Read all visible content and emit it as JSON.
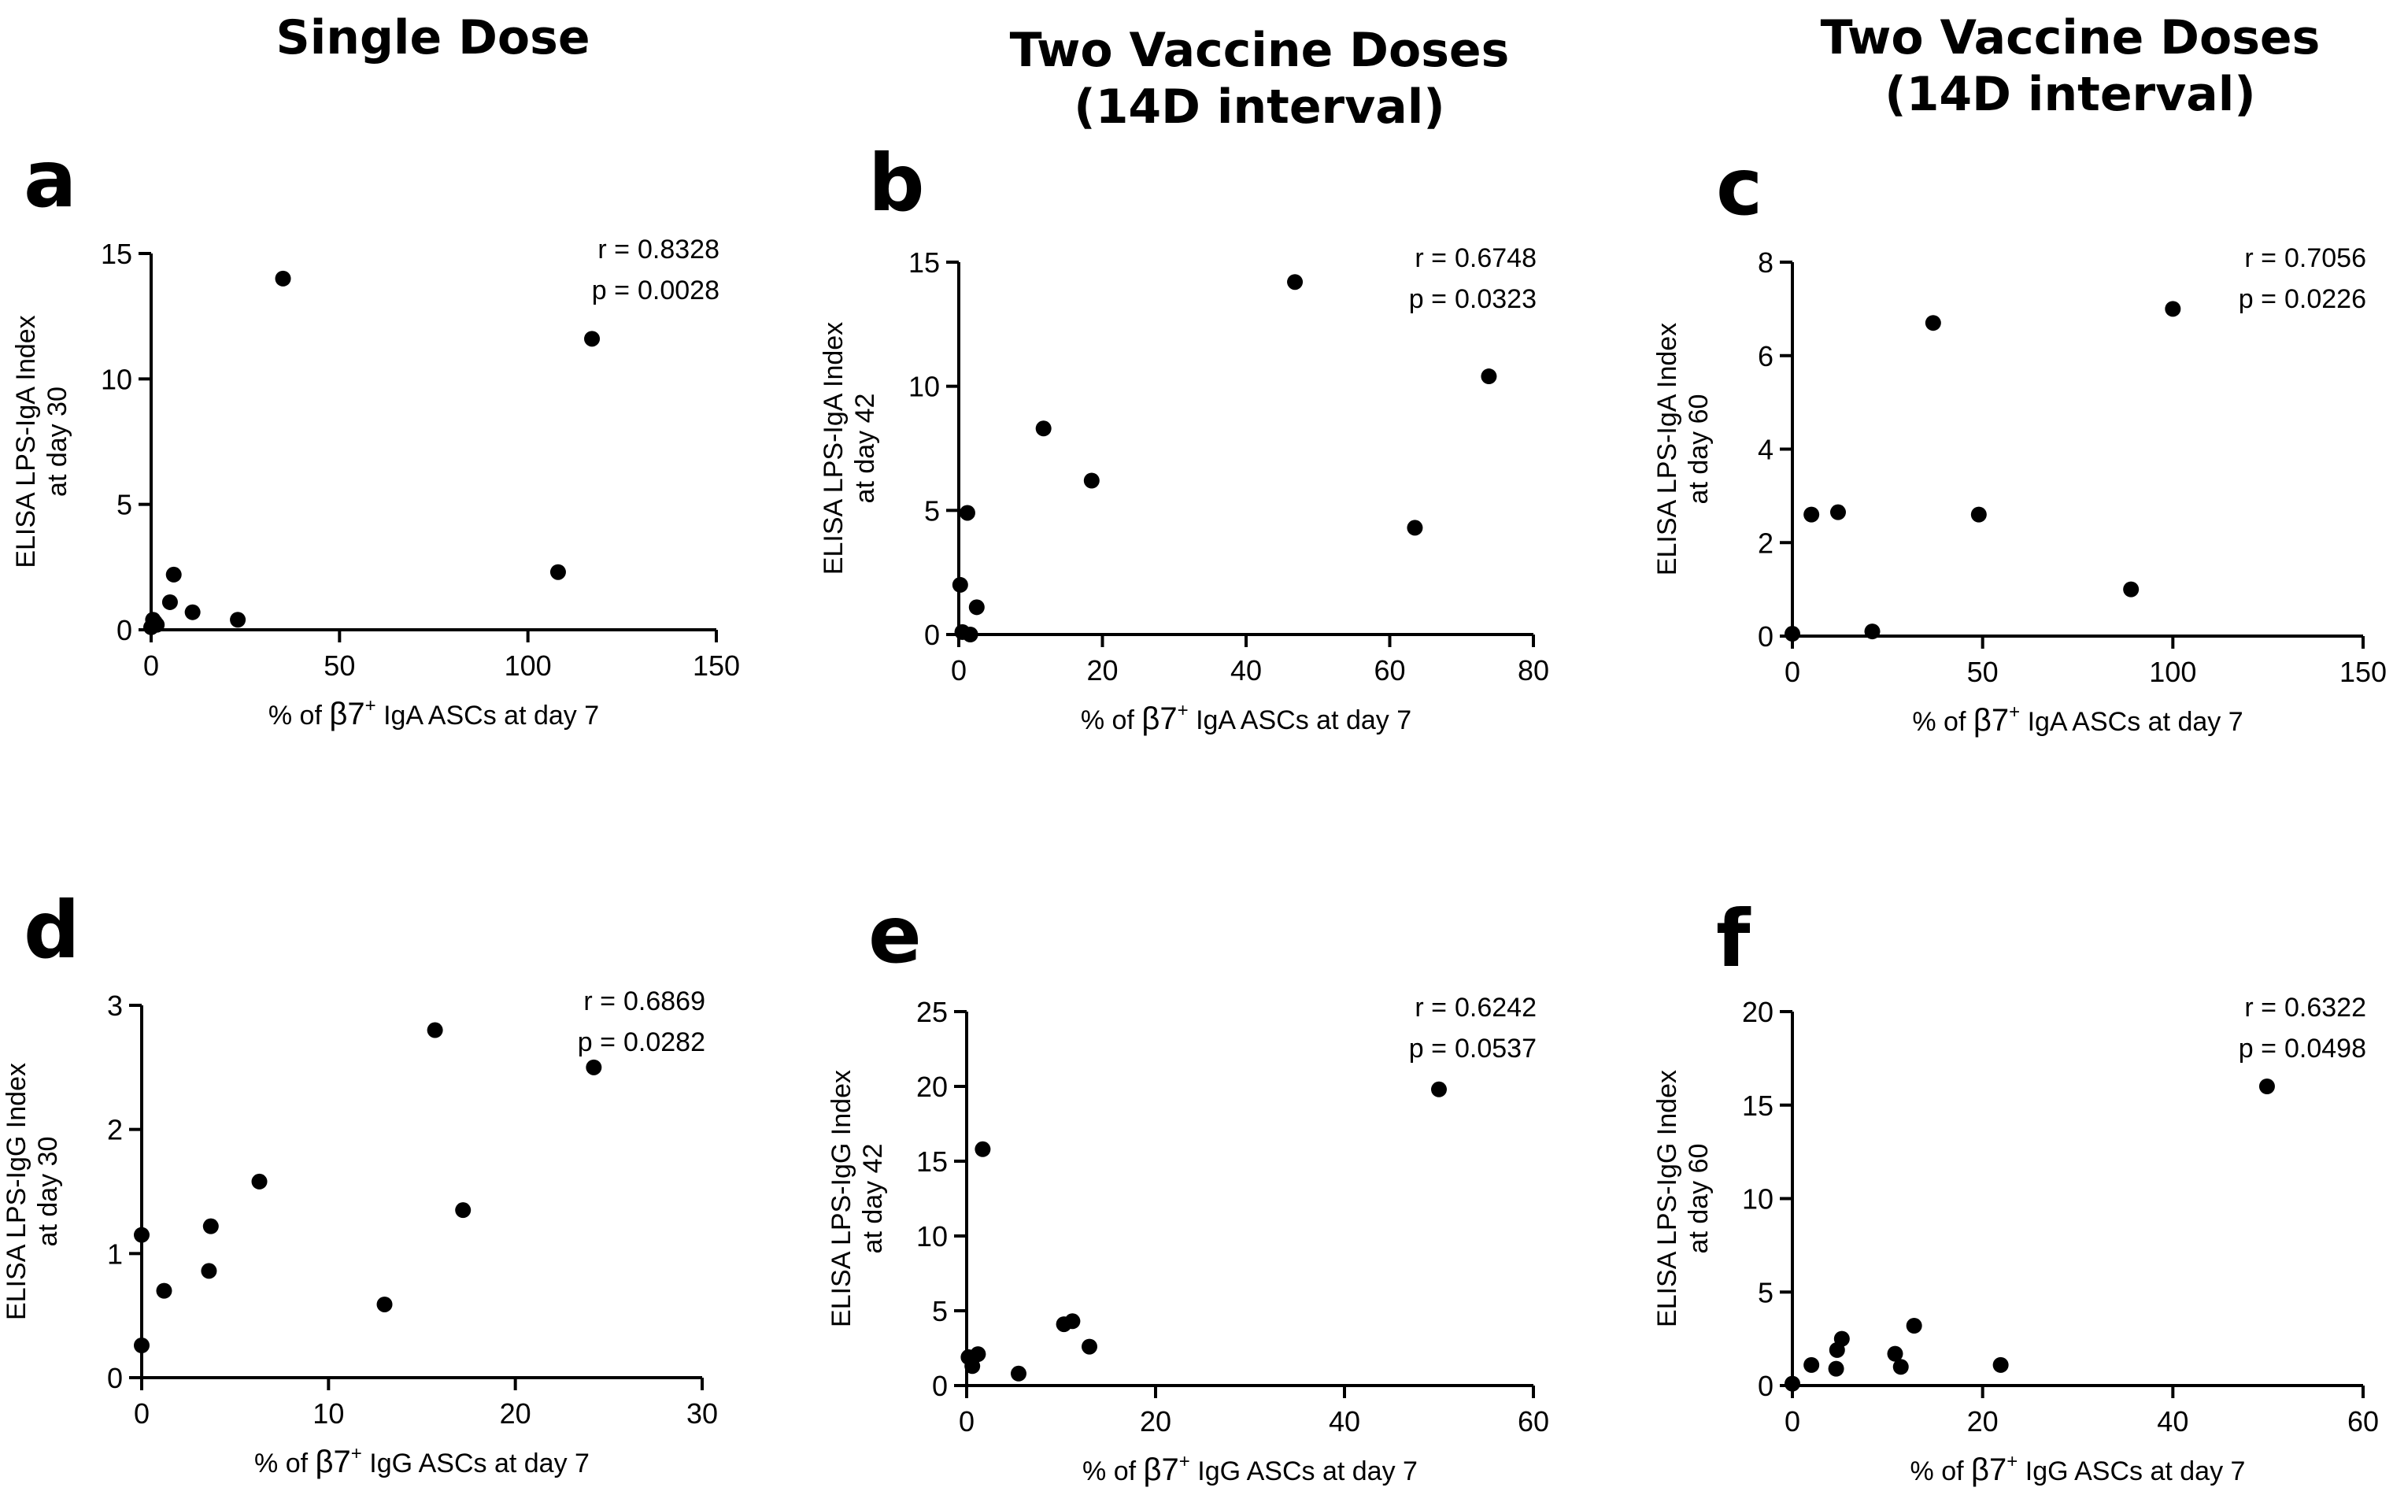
{
  "column_titles": [
    {
      "line1": "Single Dose",
      "line2": ""
    },
    {
      "line1": "Two Vaccine Doses",
      "line2": "(14D interval)"
    },
    {
      "line1": "Two Vaccine Doses",
      "line2": "(14D interval)"
    }
  ],
  "chart_data": [
    {
      "panel": "a",
      "type": "scatter",
      "xlabel": {
        "pre": "% of ",
        "greek": "β7",
        "sup": "+",
        "post": " IgA ASCs at day 7"
      },
      "ylabel": [
        "ELISA LPS-IgA Index",
        "at day 30"
      ],
      "xlim": [
        0,
        150
      ],
      "xticks": [
        0,
        50,
        100,
        150
      ],
      "ylim": [
        0,
        15
      ],
      "yticks": [
        0,
        5,
        10,
        15
      ],
      "stats": {
        "r_label": "r =",
        "r_value": "0.8328",
        "p_label": "p =",
        "p_value": "0.0028"
      },
      "points": [
        {
          "x": 0,
          "y": 0.1
        },
        {
          "x": 0.5,
          "y": 0.4
        },
        {
          "x": 1,
          "y": 0.3
        },
        {
          "x": 1.5,
          "y": 0.2
        },
        {
          "x": 5,
          "y": 1.1
        },
        {
          "x": 6,
          "y": 2.2
        },
        {
          "x": 11,
          "y": 0.7
        },
        {
          "x": 23,
          "y": 0.4
        },
        {
          "x": 35,
          "y": 14.0
        },
        {
          "x": 108,
          "y": 2.3
        },
        {
          "x": 117,
          "y": 11.6
        }
      ]
    },
    {
      "panel": "b",
      "type": "scatter",
      "xlabel": {
        "pre": "% of ",
        "greek": "β7",
        "sup": "+",
        "post": " IgA ASCs at day 7"
      },
      "ylabel": [
        "ELISA LPS-IgA Index",
        "at day 42"
      ],
      "xlim": [
        0,
        80
      ],
      "xticks": [
        0,
        20,
        40,
        60,
        80
      ],
      "ylim": [
        0,
        15
      ],
      "yticks": [
        0,
        5,
        10,
        15
      ],
      "stats": {
        "r_label": "r =",
        "r_value": "0.6748",
        "p_label": "p =",
        "p_value": "0.0323"
      },
      "points": [
        {
          "x": 0.2,
          "y": 2.0
        },
        {
          "x": 0.5,
          "y": 0.1
        },
        {
          "x": 1.2,
          "y": 4.9
        },
        {
          "x": 1.6,
          "y": 0.0
        },
        {
          "x": 2.5,
          "y": 1.1
        },
        {
          "x": 11.8,
          "y": 8.3
        },
        {
          "x": 18.5,
          "y": 6.2
        },
        {
          "x": 46.8,
          "y": 14.2
        },
        {
          "x": 63.5,
          "y": 4.3
        },
        {
          "x": 73.8,
          "y": 10.4
        }
      ]
    },
    {
      "panel": "c",
      "type": "scatter",
      "xlabel": {
        "pre": "% of ",
        "greek": "β7",
        "sup": "+",
        "post": " IgA ASCs at day 7"
      },
      "ylabel": [
        "ELISA LPS-IgA Index",
        "at day 60"
      ],
      "xlim": [
        0,
        150
      ],
      "xticks": [
        0,
        50,
        100,
        150
      ],
      "ylim": [
        0,
        8
      ],
      "yticks": [
        0,
        2,
        4,
        6,
        8
      ],
      "stats": {
        "r_label": "r =",
        "r_value": "0.7056",
        "p_label": "p =",
        "p_value": "0.0226"
      },
      "points": [
        {
          "x": 0,
          "y": 0.05
        },
        {
          "x": 5,
          "y": 2.6
        },
        {
          "x": 12,
          "y": 2.65
        },
        {
          "x": 21,
          "y": 0.1
        },
        {
          "x": 37,
          "y": 6.7
        },
        {
          "x": 49,
          "y": 2.6
        },
        {
          "x": 89,
          "y": 1.0
        },
        {
          "x": 100,
          "y": 7.0
        }
      ]
    },
    {
      "panel": "d",
      "type": "scatter",
      "xlabel": {
        "pre": "% of ",
        "greek": "β7",
        "sup": "+",
        "post": " IgG ASCs at day 7"
      },
      "ylabel": [
        "ELISA LPS-IgG Index",
        "at day 30"
      ],
      "xlim": [
        0,
        30
      ],
      "xticks": [
        0,
        10,
        20,
        30
      ],
      "ylim": [
        0,
        3
      ],
      "yticks": [
        0,
        1,
        2,
        3
      ],
      "stats": {
        "r_label": "r =",
        "r_value": "0.6869",
        "p_label": "p =",
        "p_value": "0.0282"
      },
      "points": [
        {
          "x": 0,
          "y": 1.15
        },
        {
          "x": 0,
          "y": 0.26
        },
        {
          "x": 1.2,
          "y": 0.7
        },
        {
          "x": 3.6,
          "y": 0.86
        },
        {
          "x": 3.7,
          "y": 1.22
        },
        {
          "x": 6.3,
          "y": 1.58
        },
        {
          "x": 13.0,
          "y": 0.59
        },
        {
          "x": 15.7,
          "y": 2.8
        },
        {
          "x": 17.2,
          "y": 1.35
        },
        {
          "x": 24.2,
          "y": 2.5
        }
      ]
    },
    {
      "panel": "e",
      "type": "scatter",
      "xlabel": {
        "pre": "% of ",
        "greek": "β7",
        "sup": "+",
        "post": " IgG ASCs at day 7"
      },
      "ylabel": [
        "ELISA LPS-IgG Index",
        "at day 42"
      ],
      "xlim": [
        0,
        60
      ],
      "xticks": [
        0,
        20,
        40,
        60
      ],
      "ylim": [
        0,
        25
      ],
      "yticks": [
        0,
        5,
        10,
        15,
        20,
        25
      ],
      "stats": {
        "r_label": "r =",
        "r_value": "0.6242",
        "p_label": "p =",
        "p_value": "0.0537"
      },
      "points": [
        {
          "x": 0.2,
          "y": 1.9
        },
        {
          "x": 0.6,
          "y": 1.3
        },
        {
          "x": 1.2,
          "y": 2.1
        },
        {
          "x": 1.7,
          "y": 15.8
        },
        {
          "x": 5.5,
          "y": 0.8
        },
        {
          "x": 10.3,
          "y": 4.1
        },
        {
          "x": 11.2,
          "y": 4.3
        },
        {
          "x": 13.0,
          "y": 2.6
        },
        {
          "x": 50.0,
          "y": 19.8
        }
      ]
    },
    {
      "panel": "f",
      "type": "scatter",
      "xlabel": {
        "pre": "% of ",
        "greek": "β7",
        "sup": "+",
        "post": " IgG ASCs at day 7"
      },
      "ylabel": [
        "ELISA LPS-IgG Index",
        "at day 60"
      ],
      "xlim": [
        0,
        60
      ],
      "xticks": [
        0,
        20,
        40,
        60
      ],
      "ylim": [
        0,
        20
      ],
      "yticks": [
        0,
        5,
        10,
        15,
        20
      ],
      "stats": {
        "r_label": "r =",
        "r_value": "0.6322",
        "p_label": "p =",
        "p_value": "0.0498"
      },
      "points": [
        {
          "x": 0,
          "y": 0.1
        },
        {
          "x": 2,
          "y": 1.1
        },
        {
          "x": 4.6,
          "y": 0.9
        },
        {
          "x": 4.7,
          "y": 1.9
        },
        {
          "x": 5.2,
          "y": 2.5
        },
        {
          "x": 10.8,
          "y": 1.7
        },
        {
          "x": 11.4,
          "y": 1.0
        },
        {
          "x": 12.8,
          "y": 3.2
        },
        {
          "x": 21.9,
          "y": 1.1
        },
        {
          "x": 49.9,
          "y": 16.0
        }
      ]
    }
  ]
}
